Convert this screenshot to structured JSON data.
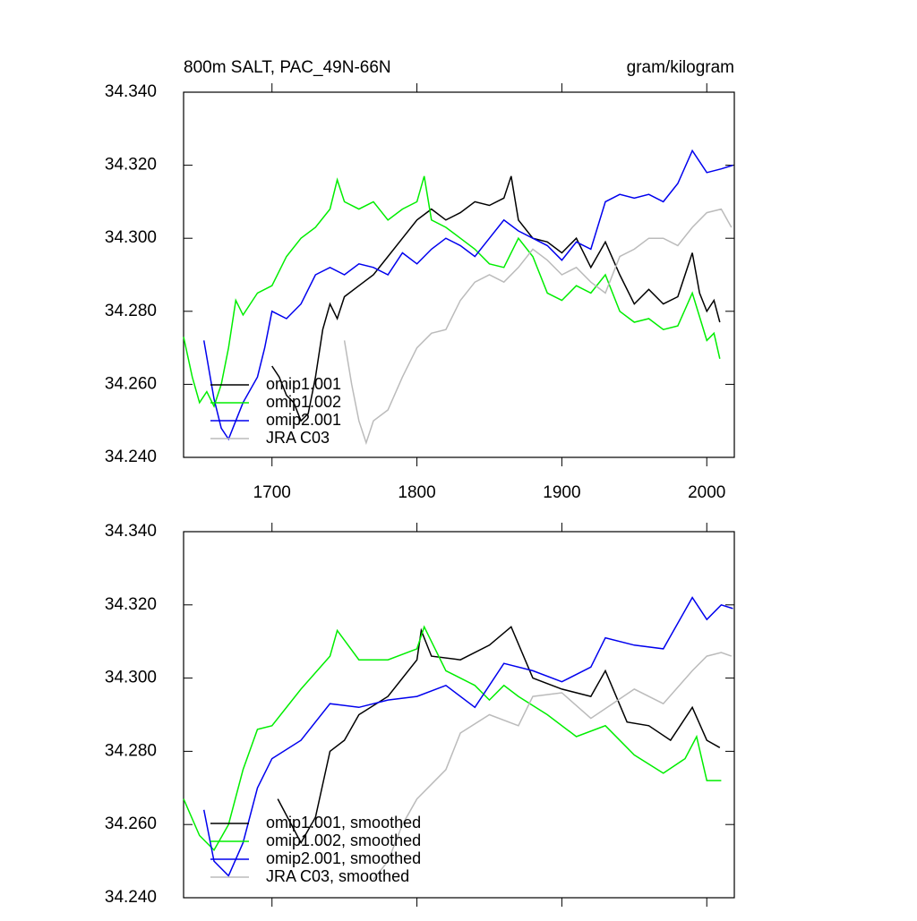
{
  "chart_data": [
    {
      "type": "line",
      "title": "800m SALT, PAC_49N-66N",
      "units": "gram/kilogram",
      "xlim": [
        1639,
        2019
      ],
      "ylim": [
        34.24,
        34.34
      ],
      "xticks": [
        1700,
        1800,
        1900,
        2000
      ],
      "xtick_labels": true,
      "yticks": [
        {
          "value": 34.24,
          "label": "34.240"
        },
        {
          "value": 34.26,
          "label": "34.260"
        },
        {
          "value": 34.28,
          "label": "34.280"
        },
        {
          "value": 34.3,
          "label": "34.300"
        },
        {
          "value": 34.32,
          "label": "34.320"
        },
        {
          "value": 34.34,
          "label": "34.340"
        }
      ],
      "legend": "lower left",
      "series": [
        {
          "name": "omip1.001",
          "color": "#000000",
          "x": [
            1700,
            1705,
            1710,
            1715,
            1720,
            1725,
            1730,
            1735,
            1740,
            1745,
            1750,
            1760,
            1770,
            1780,
            1790,
            1800,
            1810,
            1820,
            1830,
            1840,
            1850,
            1860,
            1865,
            1870,
            1880,
            1890,
            1900,
            1910,
            1920,
            1930,
            1940,
            1950,
            1960,
            1970,
            1980,
            1990,
            1995,
            2000,
            2005,
            2009
          ],
          "values": [
            34.265,
            34.262,
            34.257,
            34.255,
            34.25,
            34.252,
            34.262,
            34.275,
            34.282,
            34.278,
            34.284,
            34.287,
            34.29,
            34.295,
            34.3,
            34.305,
            34.308,
            34.305,
            34.307,
            34.31,
            34.309,
            34.311,
            34.317,
            34.305,
            34.3,
            34.299,
            34.296,
            34.3,
            34.292,
            34.299,
            34.29,
            34.282,
            34.286,
            34.282,
            34.284,
            34.296,
            34.285,
            34.28,
            34.283,
            34.277
          ]
        },
        {
          "name": "omip1.002",
          "color": "#00ee00",
          "x": [
            1639,
            1645,
            1650,
            1655,
            1660,
            1665,
            1670,
            1675,
            1680,
            1690,
            1700,
            1710,
            1720,
            1730,
            1740,
            1745,
            1750,
            1760,
            1770,
            1780,
            1790,
            1800,
            1805,
            1810,
            1820,
            1830,
            1840,
            1850,
            1860,
            1870,
            1880,
            1890,
            1900,
            1910,
            1920,
            1930,
            1940,
            1950,
            1960,
            1970,
            1980,
            1990,
            2000,
            2005,
            2009
          ],
          "values": [
            34.273,
            34.262,
            34.255,
            34.258,
            34.254,
            34.26,
            34.27,
            34.283,
            34.279,
            34.285,
            34.287,
            34.295,
            34.3,
            34.303,
            34.308,
            34.316,
            34.31,
            34.308,
            34.31,
            34.305,
            34.308,
            34.31,
            34.317,
            34.305,
            34.303,
            34.3,
            34.297,
            34.293,
            34.292,
            34.3,
            34.295,
            34.285,
            34.283,
            34.287,
            34.285,
            34.29,
            34.28,
            34.277,
            34.278,
            34.275,
            34.276,
            34.285,
            34.272,
            34.274,
            34.267
          ]
        },
        {
          "name": "omip2.001",
          "color": "#0000ee",
          "x": [
            1653,
            1660,
            1665,
            1670,
            1675,
            1680,
            1690,
            1695,
            1700,
            1710,
            1720,
            1730,
            1740,
            1750,
            1760,
            1770,
            1780,
            1790,
            1800,
            1810,
            1820,
            1830,
            1840,
            1850,
            1860,
            1870,
            1880,
            1890,
            1900,
            1910,
            1920,
            1930,
            1940,
            1950,
            1960,
            1970,
            1980,
            1990,
            2000,
            2010,
            2018
          ],
          "values": [
            34.272,
            34.256,
            34.248,
            34.245,
            34.25,
            34.255,
            34.262,
            34.27,
            34.28,
            34.278,
            34.282,
            34.29,
            34.292,
            34.29,
            34.293,
            34.292,
            34.29,
            34.296,
            34.293,
            34.297,
            34.3,
            34.298,
            34.295,
            34.3,
            34.305,
            34.302,
            34.3,
            34.298,
            34.294,
            34.299,
            34.297,
            34.31,
            34.312,
            34.311,
            34.312,
            34.31,
            34.315,
            34.324,
            34.318,
            34.319,
            34.32
          ]
        },
        {
          "name": "JRA C03",
          "color": "#bbbbbb",
          "x": [
            1750,
            1755,
            1760,
            1765,
            1770,
            1780,
            1790,
            1800,
            1810,
            1820,
            1830,
            1840,
            1850,
            1860,
            1870,
            1880,
            1890,
            1900,
            1910,
            1920,
            1930,
            1940,
            1950,
            1960,
            1970,
            1980,
            1990,
            2000,
            2010,
            2017
          ],
          "values": [
            34.272,
            34.26,
            34.25,
            34.244,
            34.25,
            34.253,
            34.262,
            34.27,
            34.274,
            34.275,
            34.283,
            34.288,
            34.29,
            34.288,
            34.292,
            34.297,
            34.294,
            34.29,
            34.292,
            34.288,
            34.285,
            34.295,
            34.297,
            34.3,
            34.3,
            34.298,
            34.303,
            34.307,
            34.308,
            34.303
          ]
        }
      ]
    },
    {
      "type": "line",
      "xlim": [
        1639,
        2019
      ],
      "ylim": [
        34.24,
        34.34
      ],
      "xticks": [
        1700,
        1800,
        1900,
        2000
      ],
      "xtick_labels": false,
      "yticks": [
        {
          "value": 34.24,
          "label": "34.240"
        },
        {
          "value": 34.26,
          "label": "34.260"
        },
        {
          "value": 34.28,
          "label": "34.280"
        },
        {
          "value": 34.3,
          "label": "34.300"
        },
        {
          "value": 34.32,
          "label": "34.320"
        },
        {
          "value": 34.34,
          "label": "34.340"
        }
      ],
      "legend": "lower left",
      "series": [
        {
          "name": "omip1.001, smoothed",
          "color": "#000000",
          "x": [
            1704,
            1720,
            1730,
            1740,
            1750,
            1760,
            1780,
            1800,
            1803,
            1810,
            1830,
            1850,
            1865,
            1880,
            1900,
            1920,
            1930,
            1945,
            1960,
            1975,
            1990,
            2000,
            2009
          ],
          "values": [
            34.267,
            34.255,
            34.262,
            34.28,
            34.283,
            34.29,
            34.295,
            34.305,
            34.313,
            34.306,
            34.305,
            34.309,
            34.314,
            34.3,
            34.297,
            34.295,
            34.302,
            34.288,
            34.287,
            34.283,
            34.292,
            34.283,
            34.281
          ]
        },
        {
          "name": "omip1.002, smoothed",
          "color": "#00ee00",
          "x": [
            1639,
            1650,
            1660,
            1670,
            1680,
            1690,
            1700,
            1720,
            1740,
            1745,
            1760,
            1780,
            1800,
            1805,
            1820,
            1840,
            1850,
            1860,
            1870,
            1890,
            1910,
            1930,
            1950,
            1970,
            1985,
            1993,
            2000,
            2010
          ],
          "values": [
            34.267,
            34.257,
            34.253,
            34.26,
            34.275,
            34.286,
            34.287,
            34.297,
            34.306,
            34.313,
            34.305,
            34.305,
            34.308,
            34.314,
            34.302,
            34.298,
            34.294,
            34.298,
            34.295,
            34.29,
            34.284,
            34.287,
            34.279,
            34.274,
            34.278,
            34.284,
            34.272,
            34.272
          ]
        },
        {
          "name": "omip2.001, smoothed",
          "color": "#0000ee",
          "x": [
            1653,
            1660,
            1670,
            1680,
            1690,
            1700,
            1720,
            1740,
            1760,
            1780,
            1800,
            1820,
            1840,
            1860,
            1880,
            1900,
            1920,
            1930,
            1950,
            1970,
            1990,
            2000,
            2010,
            2018
          ],
          "values": [
            34.264,
            34.25,
            34.246,
            34.255,
            34.27,
            34.278,
            34.283,
            34.293,
            34.292,
            34.294,
            34.295,
            34.298,
            34.292,
            34.304,
            34.302,
            34.299,
            34.303,
            34.311,
            34.309,
            34.308,
            34.322,
            34.316,
            34.32,
            34.319
          ]
        },
        {
          "name": "JRA C03, smoothed",
          "color": "#bbbbbb",
          "x": [
            1770,
            1780,
            1790,
            1800,
            1820,
            1830,
            1850,
            1870,
            1880,
            1900,
            1920,
            1935,
            1950,
            1970,
            1990,
            2000,
            2010,
            2017
          ],
          "values": [
            34.245,
            34.25,
            34.26,
            34.267,
            34.275,
            34.285,
            34.29,
            34.287,
            34.295,
            34.296,
            34.289,
            34.293,
            34.297,
            34.293,
            34.302,
            34.306,
            34.307,
            34.306
          ]
        }
      ]
    }
  ]
}
